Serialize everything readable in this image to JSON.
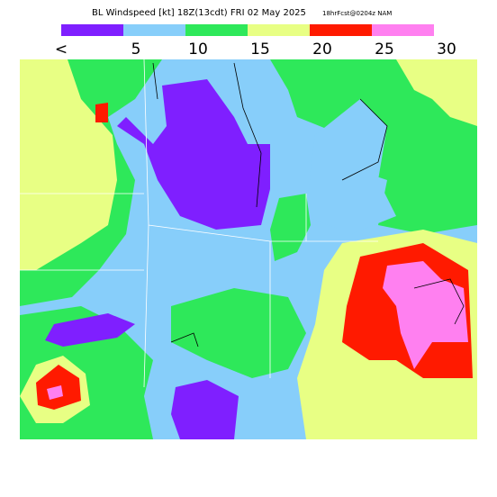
{
  "header": {
    "title": "BL Windspeed [kt] 18Z(13cdt) FRI 02 May 2025",
    "forecast": "18hrFcst@0204z NAM"
  },
  "legend": {
    "labels": [
      "<",
      "5",
      "10",
      "15",
      "20",
      "25",
      "30"
    ],
    "colors": [
      "#7f1fff",
      "#87cefa",
      "#2ee85a",
      "#e8ff84",
      "#ff1a00",
      "#ff80f0"
    ]
  }
}
